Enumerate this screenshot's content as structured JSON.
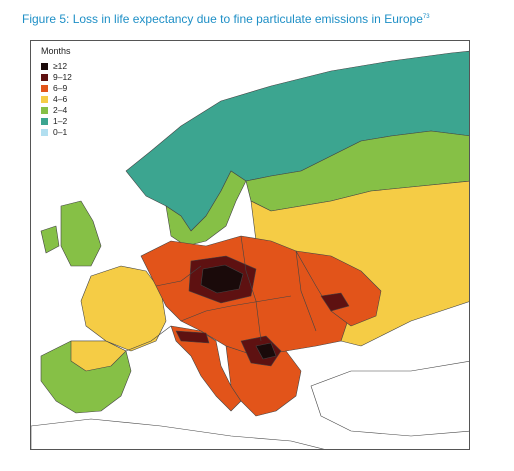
{
  "figure": {
    "caption": "Figure 5: Loss in life expectancy due to fine particulate emissions in Europe",
    "footnote": "73"
  },
  "legend": {
    "title": "Months",
    "classes": [
      {
        "label": "≥12",
        "color": "#1a0a0a"
      },
      {
        "label": "9–12",
        "color": "#5e1111"
      },
      {
        "label": "6–9",
        "color": "#e2541a"
      },
      {
        "label": "4–6",
        "color": "#f5cc45"
      },
      {
        "label": "2–4",
        "color": "#86c046"
      },
      {
        "label": "1–2",
        "color": "#3ca590"
      },
      {
        "label": "0–1",
        "color": "#b2dff0"
      }
    ]
  },
  "colors": {
    "sea": "#ffffff",
    "no_data_land": "#ffffff",
    "borders": "#444444"
  }
}
